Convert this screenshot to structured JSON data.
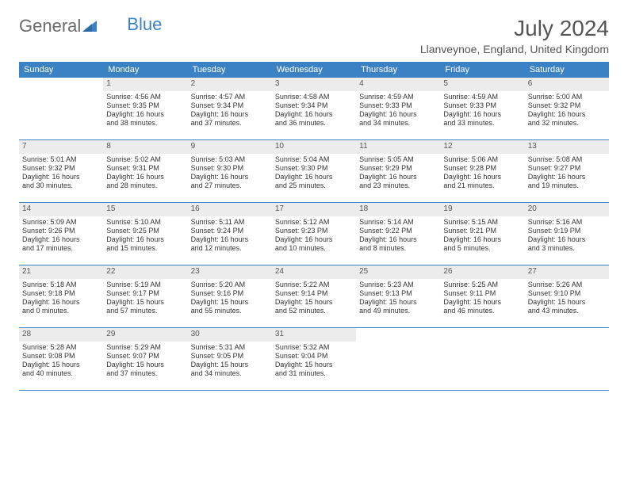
{
  "logo": {
    "text1": "General",
    "text2": "Blue"
  },
  "title": "July 2024",
  "location": "Llanveynoe, England, United Kingdom",
  "colors": {
    "header_bg": "#3b82c4",
    "daynum_bg": "#ececec",
    "text": "#333333",
    "title_text": "#555555"
  },
  "day_names": [
    "Sunday",
    "Monday",
    "Tuesday",
    "Wednesday",
    "Thursday",
    "Friday",
    "Saturday"
  ],
  "weeks": [
    [
      {
        "day": "",
        "sunrise": "",
        "sunset": "",
        "daylight1": "",
        "daylight2": ""
      },
      {
        "day": "1",
        "sunrise": "Sunrise: 4:56 AM",
        "sunset": "Sunset: 9:35 PM",
        "daylight1": "Daylight: 16 hours",
        "daylight2": "and 38 minutes."
      },
      {
        "day": "2",
        "sunrise": "Sunrise: 4:57 AM",
        "sunset": "Sunset: 9:34 PM",
        "daylight1": "Daylight: 16 hours",
        "daylight2": "and 37 minutes."
      },
      {
        "day": "3",
        "sunrise": "Sunrise: 4:58 AM",
        "sunset": "Sunset: 9:34 PM",
        "daylight1": "Daylight: 16 hours",
        "daylight2": "and 36 minutes."
      },
      {
        "day": "4",
        "sunrise": "Sunrise: 4:59 AM",
        "sunset": "Sunset: 9:33 PM",
        "daylight1": "Daylight: 16 hours",
        "daylight2": "and 34 minutes."
      },
      {
        "day": "5",
        "sunrise": "Sunrise: 4:59 AM",
        "sunset": "Sunset: 9:33 PM",
        "daylight1": "Daylight: 16 hours",
        "daylight2": "and 33 minutes."
      },
      {
        "day": "6",
        "sunrise": "Sunrise: 5:00 AM",
        "sunset": "Sunset: 9:32 PM",
        "daylight1": "Daylight: 16 hours",
        "daylight2": "and 32 minutes."
      }
    ],
    [
      {
        "day": "7",
        "sunrise": "Sunrise: 5:01 AM",
        "sunset": "Sunset: 9:32 PM",
        "daylight1": "Daylight: 16 hours",
        "daylight2": "and 30 minutes."
      },
      {
        "day": "8",
        "sunrise": "Sunrise: 5:02 AM",
        "sunset": "Sunset: 9:31 PM",
        "daylight1": "Daylight: 16 hours",
        "daylight2": "and 28 minutes."
      },
      {
        "day": "9",
        "sunrise": "Sunrise: 5:03 AM",
        "sunset": "Sunset: 9:30 PM",
        "daylight1": "Daylight: 16 hours",
        "daylight2": "and 27 minutes."
      },
      {
        "day": "10",
        "sunrise": "Sunrise: 5:04 AM",
        "sunset": "Sunset: 9:30 PM",
        "daylight1": "Daylight: 16 hours",
        "daylight2": "and 25 minutes."
      },
      {
        "day": "11",
        "sunrise": "Sunrise: 5:05 AM",
        "sunset": "Sunset: 9:29 PM",
        "daylight1": "Daylight: 16 hours",
        "daylight2": "and 23 minutes."
      },
      {
        "day": "12",
        "sunrise": "Sunrise: 5:06 AM",
        "sunset": "Sunset: 9:28 PM",
        "daylight1": "Daylight: 16 hours",
        "daylight2": "and 21 minutes."
      },
      {
        "day": "13",
        "sunrise": "Sunrise: 5:08 AM",
        "sunset": "Sunset: 9:27 PM",
        "daylight1": "Daylight: 16 hours",
        "daylight2": "and 19 minutes."
      }
    ],
    [
      {
        "day": "14",
        "sunrise": "Sunrise: 5:09 AM",
        "sunset": "Sunset: 9:26 PM",
        "daylight1": "Daylight: 16 hours",
        "daylight2": "and 17 minutes."
      },
      {
        "day": "15",
        "sunrise": "Sunrise: 5:10 AM",
        "sunset": "Sunset: 9:25 PM",
        "daylight1": "Daylight: 16 hours",
        "daylight2": "and 15 minutes."
      },
      {
        "day": "16",
        "sunrise": "Sunrise: 5:11 AM",
        "sunset": "Sunset: 9:24 PM",
        "daylight1": "Daylight: 16 hours",
        "daylight2": "and 12 minutes."
      },
      {
        "day": "17",
        "sunrise": "Sunrise: 5:12 AM",
        "sunset": "Sunset: 9:23 PM",
        "daylight1": "Daylight: 16 hours",
        "daylight2": "and 10 minutes."
      },
      {
        "day": "18",
        "sunrise": "Sunrise: 5:14 AM",
        "sunset": "Sunset: 9:22 PM",
        "daylight1": "Daylight: 16 hours",
        "daylight2": "and 8 minutes."
      },
      {
        "day": "19",
        "sunrise": "Sunrise: 5:15 AM",
        "sunset": "Sunset: 9:21 PM",
        "daylight1": "Daylight: 16 hours",
        "daylight2": "and 5 minutes."
      },
      {
        "day": "20",
        "sunrise": "Sunrise: 5:16 AM",
        "sunset": "Sunset: 9:19 PM",
        "daylight1": "Daylight: 16 hours",
        "daylight2": "and 3 minutes."
      }
    ],
    [
      {
        "day": "21",
        "sunrise": "Sunrise: 5:18 AM",
        "sunset": "Sunset: 9:18 PM",
        "daylight1": "Daylight: 16 hours",
        "daylight2": "and 0 minutes."
      },
      {
        "day": "22",
        "sunrise": "Sunrise: 5:19 AM",
        "sunset": "Sunset: 9:17 PM",
        "daylight1": "Daylight: 15 hours",
        "daylight2": "and 57 minutes."
      },
      {
        "day": "23",
        "sunrise": "Sunrise: 5:20 AM",
        "sunset": "Sunset: 9:16 PM",
        "daylight1": "Daylight: 15 hours",
        "daylight2": "and 55 minutes."
      },
      {
        "day": "24",
        "sunrise": "Sunrise: 5:22 AM",
        "sunset": "Sunset: 9:14 PM",
        "daylight1": "Daylight: 15 hours",
        "daylight2": "and 52 minutes."
      },
      {
        "day": "25",
        "sunrise": "Sunrise: 5:23 AM",
        "sunset": "Sunset: 9:13 PM",
        "daylight1": "Daylight: 15 hours",
        "daylight2": "and 49 minutes."
      },
      {
        "day": "26",
        "sunrise": "Sunrise: 5:25 AM",
        "sunset": "Sunset: 9:11 PM",
        "daylight1": "Daylight: 15 hours",
        "daylight2": "and 46 minutes."
      },
      {
        "day": "27",
        "sunrise": "Sunrise: 5:26 AM",
        "sunset": "Sunset: 9:10 PM",
        "daylight1": "Daylight: 15 hours",
        "daylight2": "and 43 minutes."
      }
    ],
    [
      {
        "day": "28",
        "sunrise": "Sunrise: 5:28 AM",
        "sunset": "Sunset: 9:08 PM",
        "daylight1": "Daylight: 15 hours",
        "daylight2": "and 40 minutes."
      },
      {
        "day": "29",
        "sunrise": "Sunrise: 5:29 AM",
        "sunset": "Sunset: 9:07 PM",
        "daylight1": "Daylight: 15 hours",
        "daylight2": "and 37 minutes."
      },
      {
        "day": "30",
        "sunrise": "Sunrise: 5:31 AM",
        "sunset": "Sunset: 9:05 PM",
        "daylight1": "Daylight: 15 hours",
        "daylight2": "and 34 minutes."
      },
      {
        "day": "31",
        "sunrise": "Sunrise: 5:32 AM",
        "sunset": "Sunset: 9:04 PM",
        "daylight1": "Daylight: 15 hours",
        "daylight2": "and 31 minutes."
      },
      {
        "day": "",
        "sunrise": "",
        "sunset": "",
        "daylight1": "",
        "daylight2": ""
      },
      {
        "day": "",
        "sunrise": "",
        "sunset": "",
        "daylight1": "",
        "daylight2": ""
      },
      {
        "day": "",
        "sunrise": "",
        "sunset": "",
        "daylight1": "",
        "daylight2": ""
      }
    ]
  ]
}
